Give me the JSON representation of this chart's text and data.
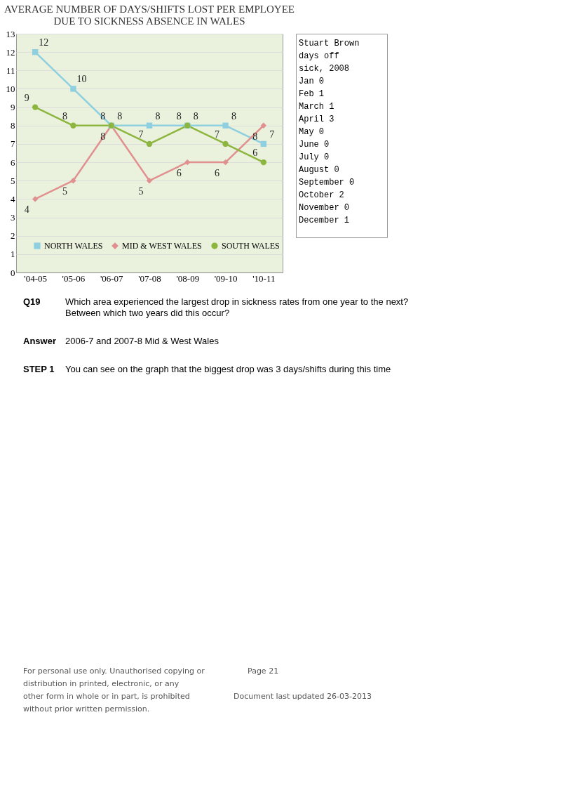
{
  "chart_data": {
    "type": "line",
    "title": "AVERAGE NUMBER OF DAYS/SHIFTS LOST PER EMPLOYEE DUE TO SICKNESS ABSENCE IN WALES",
    "categories": [
      "'04-05",
      "'05-06",
      "'06-07",
      "'07-08",
      "'08-09",
      "'09-10",
      "'10-11"
    ],
    "series": [
      {
        "name": "NORTH WALES",
        "color": "#8ecfe0",
        "marker": "square",
        "values": [
          12,
          10,
          8,
          8,
          8,
          8,
          7
        ]
      },
      {
        "name": "MID & WEST WALES",
        "color": "#e0918f",
        "marker": "diamond",
        "values": [
          4,
          5,
          8,
          5,
          6,
          6,
          8
        ]
      },
      {
        "name": "SOUTH WALES",
        "color": "#8db63f",
        "marker": "circle",
        "values": [
          9,
          8,
          8,
          7,
          8,
          7,
          6
        ]
      }
    ],
    "ylim": [
      0,
      13
    ],
    "yticks": [
      0,
      1,
      2,
      3,
      4,
      5,
      6,
      7,
      8,
      9,
      10,
      11,
      12,
      13
    ],
    "grid": "y",
    "legend": "bottom",
    "data_labels": true,
    "annotations": [
      "Stuart Brown days off sick, 2008",
      "Jan 0",
      "Feb 1",
      "March 1",
      "April 3",
      "May 0",
      "June 0",
      "July 0",
      "August 0",
      "September 0",
      "October 2",
      "November 0",
      "December 1",
      "Q19",
      "Which area experienced the largest drop in sickness rates from one year to the next? Between which two years did this occur?",
      "Answer",
      "2006-7 and  2007-8 Mid & West Wales",
      "STEP 1",
      "You  can see on the graph that the biggest drop was 3 days/shifts during this time",
      "For personal use only. Unauthorised copying or distribution in printed, electronic, or any other form in whole or in part, is prohibited without prior written permission.",
      "Page 21",
      "Document last updated 26-03-2013"
    ]
  }
}
